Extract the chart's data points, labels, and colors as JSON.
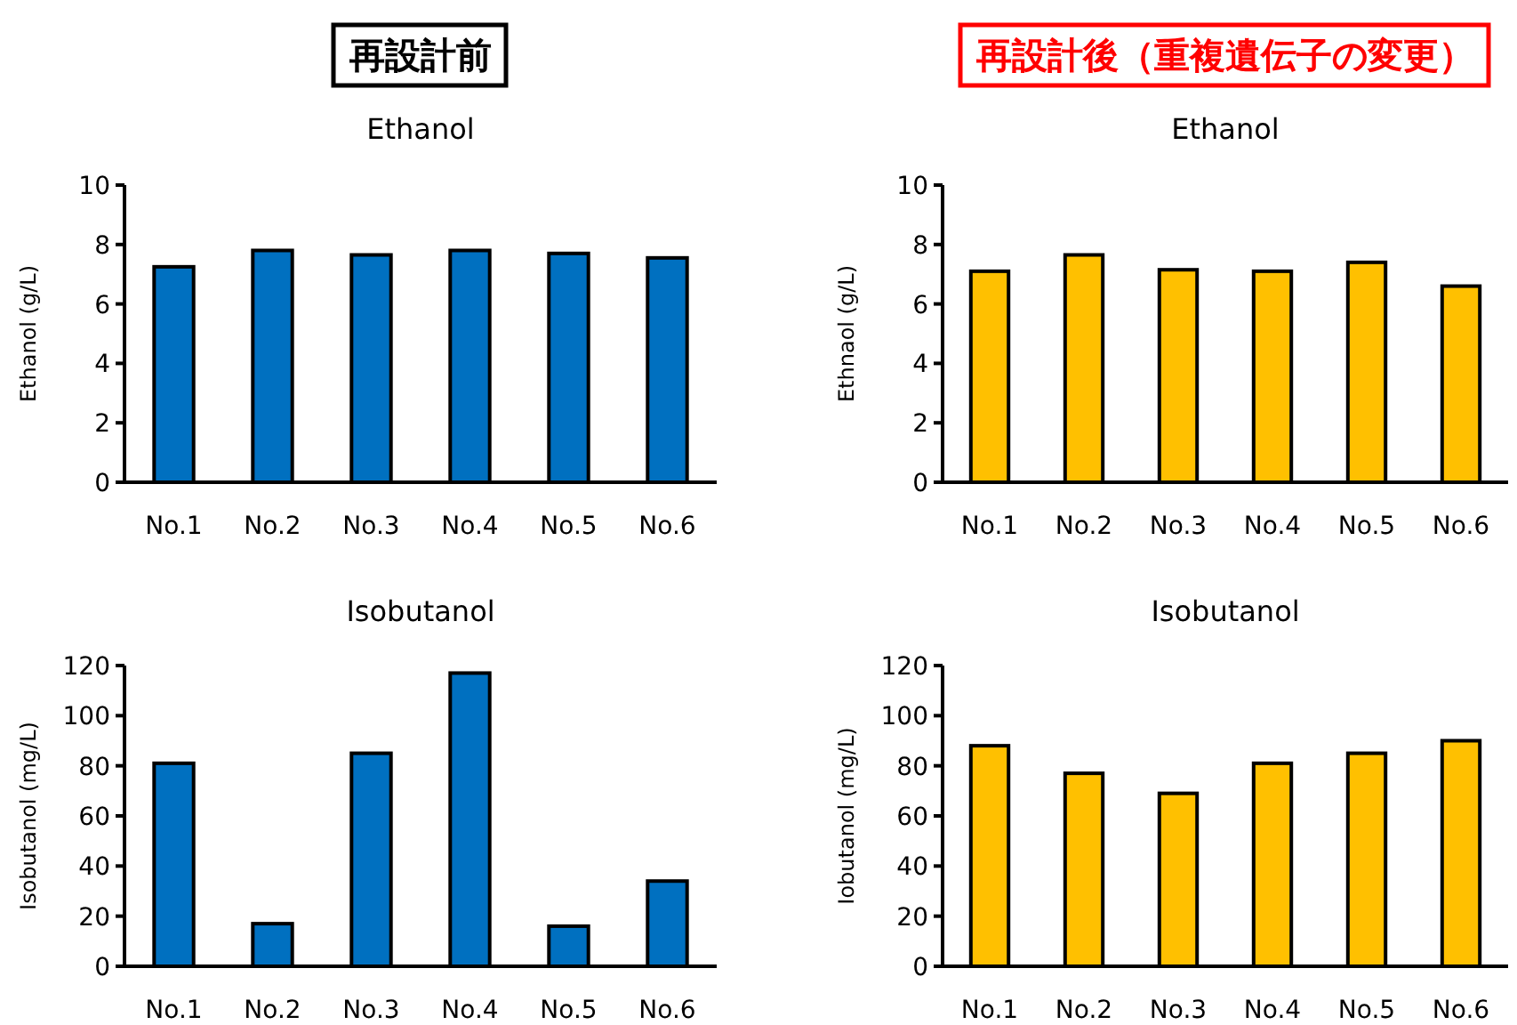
{
  "chart_data": [
    {
      "type": "bar",
      "title": "再設計前",
      "subtitle": "Ethanol",
      "ylabel": "Ethanol (g/L)",
      "categories": [
        "No.1",
        "No.2",
        "No.3",
        "No.4",
        "No.5",
        "No.6"
      ],
      "series": [
        {
          "color": "#0070c0",
          "values": [
            7.25,
            7.8,
            7.65,
            7.8,
            7.7,
            7.55
          ]
        }
      ],
      "ylim": [
        0,
        10
      ],
      "yticks": [
        0,
        2,
        4,
        6,
        8,
        10
      ],
      "grid": false
    },
    {
      "type": "bar",
      "title": "再設計後（重複遺伝子の変更）",
      "subtitle": "Ethanol",
      "ylabel": "Ethnaol (g/L)",
      "categories": [
        "No.1",
        "No.2",
        "No.3",
        "No.4",
        "No.5",
        "No.6"
      ],
      "series": [
        {
          "color": "#ffc000",
          "values": [
            7.1,
            7.65,
            7.15,
            7.1,
            7.4,
            6.6
          ]
        }
      ],
      "ylim": [
        0,
        10
      ],
      "yticks": [
        0,
        2,
        4,
        6,
        8,
        10
      ],
      "grid": false
    },
    {
      "type": "bar",
      "title": "Isobutanol",
      "ylabel": "Isobutanol (mg/L)",
      "categories": [
        "No.1",
        "No.2",
        "No.3",
        "No.4",
        "No.5",
        "No.6"
      ],
      "series": [
        {
          "color": "#0070c0",
          "values": [
            81,
            17,
            85,
            117,
            16,
            34
          ]
        }
      ],
      "ylim": [
        0,
        120
      ],
      "yticks": [
        0,
        20,
        40,
        60,
        80,
        100,
        120
      ],
      "grid": false
    },
    {
      "type": "bar",
      "title": "Isobutanol",
      "ylabel": "Iobutanol (mg/L)",
      "categories": [
        "No.1",
        "No.2",
        "No.3",
        "No.4",
        "No.5",
        "No.6"
      ],
      "series": [
        {
          "color": "#ffc000",
          "values": [
            88,
            77,
            69,
            81,
            85,
            90
          ]
        }
      ],
      "ylim": [
        0,
        120
      ],
      "yticks": [
        0,
        20,
        40,
        60,
        80,
        100,
        120
      ],
      "grid": false
    }
  ]
}
